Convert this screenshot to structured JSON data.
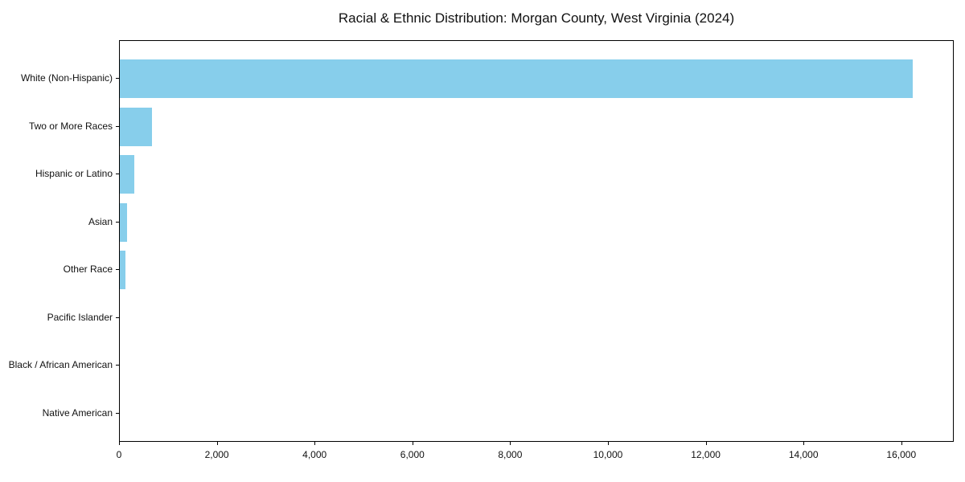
{
  "title": "Racial & Ethnic Distribution: Morgan County, West Virginia (2024)",
  "chart_data": {
    "type": "bar",
    "orientation": "horizontal",
    "title": "Racial & Ethnic Distribution: Morgan County, West Virginia (2024)",
    "categories": [
      "White (Non-Hispanic)",
      "Two or More Races",
      "Hispanic or Latino",
      "Asian",
      "Other Race",
      "Pacific Islander",
      "Black / African American",
      "Native American"
    ],
    "values": [
      16225,
      665,
      290,
      140,
      110,
      0,
      0,
      0
    ],
    "bar_color": "#87CEEB",
    "xlabel": "",
    "ylabel": "",
    "xlim": [
      0,
      17040
    ],
    "xticks": [
      0,
      2000,
      4000,
      6000,
      8000,
      10000,
      12000,
      14000,
      16000
    ],
    "xticklabels": [
      "0",
      "2,000",
      "4,000",
      "6,000",
      "8,000",
      "10,000",
      "12,000",
      "14,000",
      "16,000"
    ],
    "grid": false,
    "legend": null,
    "background": "#ffffff"
  }
}
